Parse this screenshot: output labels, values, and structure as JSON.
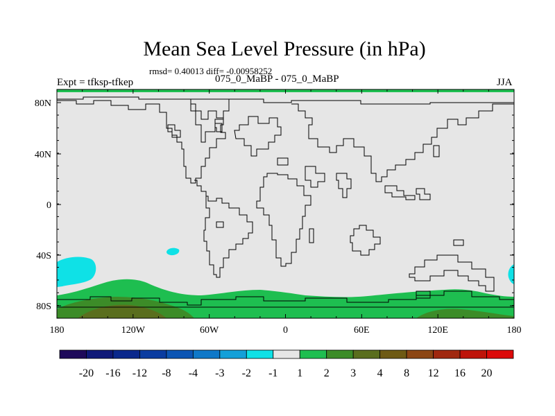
{
  "title": "Mean Sea Level Pressure (in hPa)",
  "stats_text": "rmsd= 0.40013 diff= -0.00958252",
  "expt_label": "Expt = tfksp-tfkep",
  "experiment_label": "075_0_MaBP - 075_0_MaBP",
  "season": "JJA",
  "lat_labels": [
    "80N",
    "40N",
    "0",
    "40S",
    "80S"
  ],
  "lon_labels": [
    "180",
    "120W",
    "60W",
    "0",
    "60E",
    "120E",
    "180"
  ],
  "colorbar": {
    "colors": [
      "#1e0a5a",
      "#0f1978",
      "#0a288c",
      "#0a3ca0",
      "#0c55b4",
      "#0f78c8",
      "#14a0d8",
      "#0fe1e6",
      "#e6e6e6",
      "#1ebe50",
      "#3c8c28",
      "#5a6e1e",
      "#6e5a14",
      "#8c4614",
      "#a0280f",
      "#be140a",
      "#dc0a0a"
    ],
    "labels": [
      "-20",
      "-16",
      "-12",
      "-8",
      "-4",
      "-3",
      "-2",
      "-1",
      "1",
      "2",
      "3",
      "4",
      "8",
      "12",
      "16",
      "20"
    ]
  },
  "colors": {
    "background": "#e6e6e6",
    "positive_2": "#1ebe50",
    "positive_3": "#3c8c28",
    "positive_4": "#5a6e1e",
    "negative_1": "#0fe1e6"
  }
}
